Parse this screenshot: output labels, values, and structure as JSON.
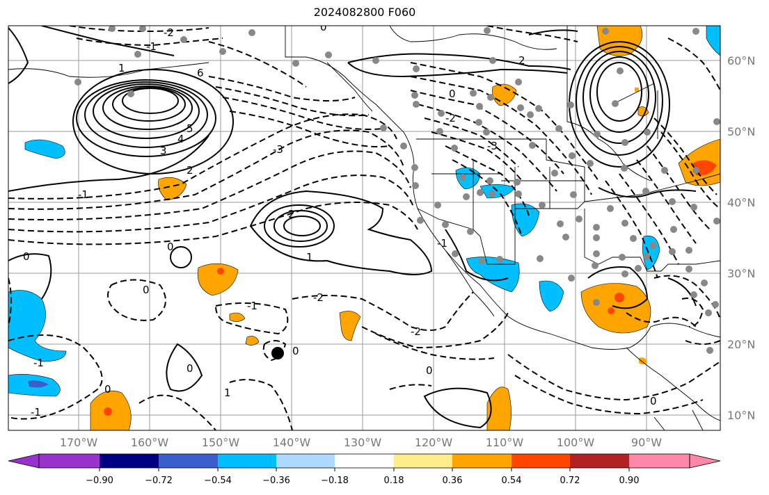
{
  "title": "2024082800 F060",
  "lon_labels": [
    "170°W",
    "160°W",
    "150°W",
    "140°W",
    "130°W",
    "120°W",
    "110°W",
    "100°W",
    "90°W"
  ],
  "lat_labels": [
    "60°N",
    "50°N",
    "40°N",
    "30°N",
    "20°N",
    "10°N"
  ],
  "colorbar": {
    "ticks": [
      "−0.90",
      "−0.72",
      "−0.54",
      "−0.36",
      "−0.18",
      "0.18",
      "0.36",
      "0.54",
      "0.72",
      "0.90"
    ],
    "colors": [
      "#9932cc",
      "#000080",
      "#3a5fcd",
      "#00bfff",
      "#add8ff",
      "#ffffff",
      "#ffec8b",
      "#ffa500",
      "#ff4500",
      "#b22222",
      "#ff88aa"
    ]
  },
  "contour_labels": [
    "-2",
    "-1",
    "0",
    "2",
    "1",
    "3",
    "4",
    "5",
    "6",
    "-3",
    "2",
    "-1",
    "2",
    "0",
    "1",
    "-3",
    "-2",
    "-2",
    "-1",
    "0",
    "-2",
    "0",
    "0",
    "1",
    "-1",
    "0",
    "0",
    "-1",
    "0",
    "0",
    "-1",
    "0"
  ]
}
